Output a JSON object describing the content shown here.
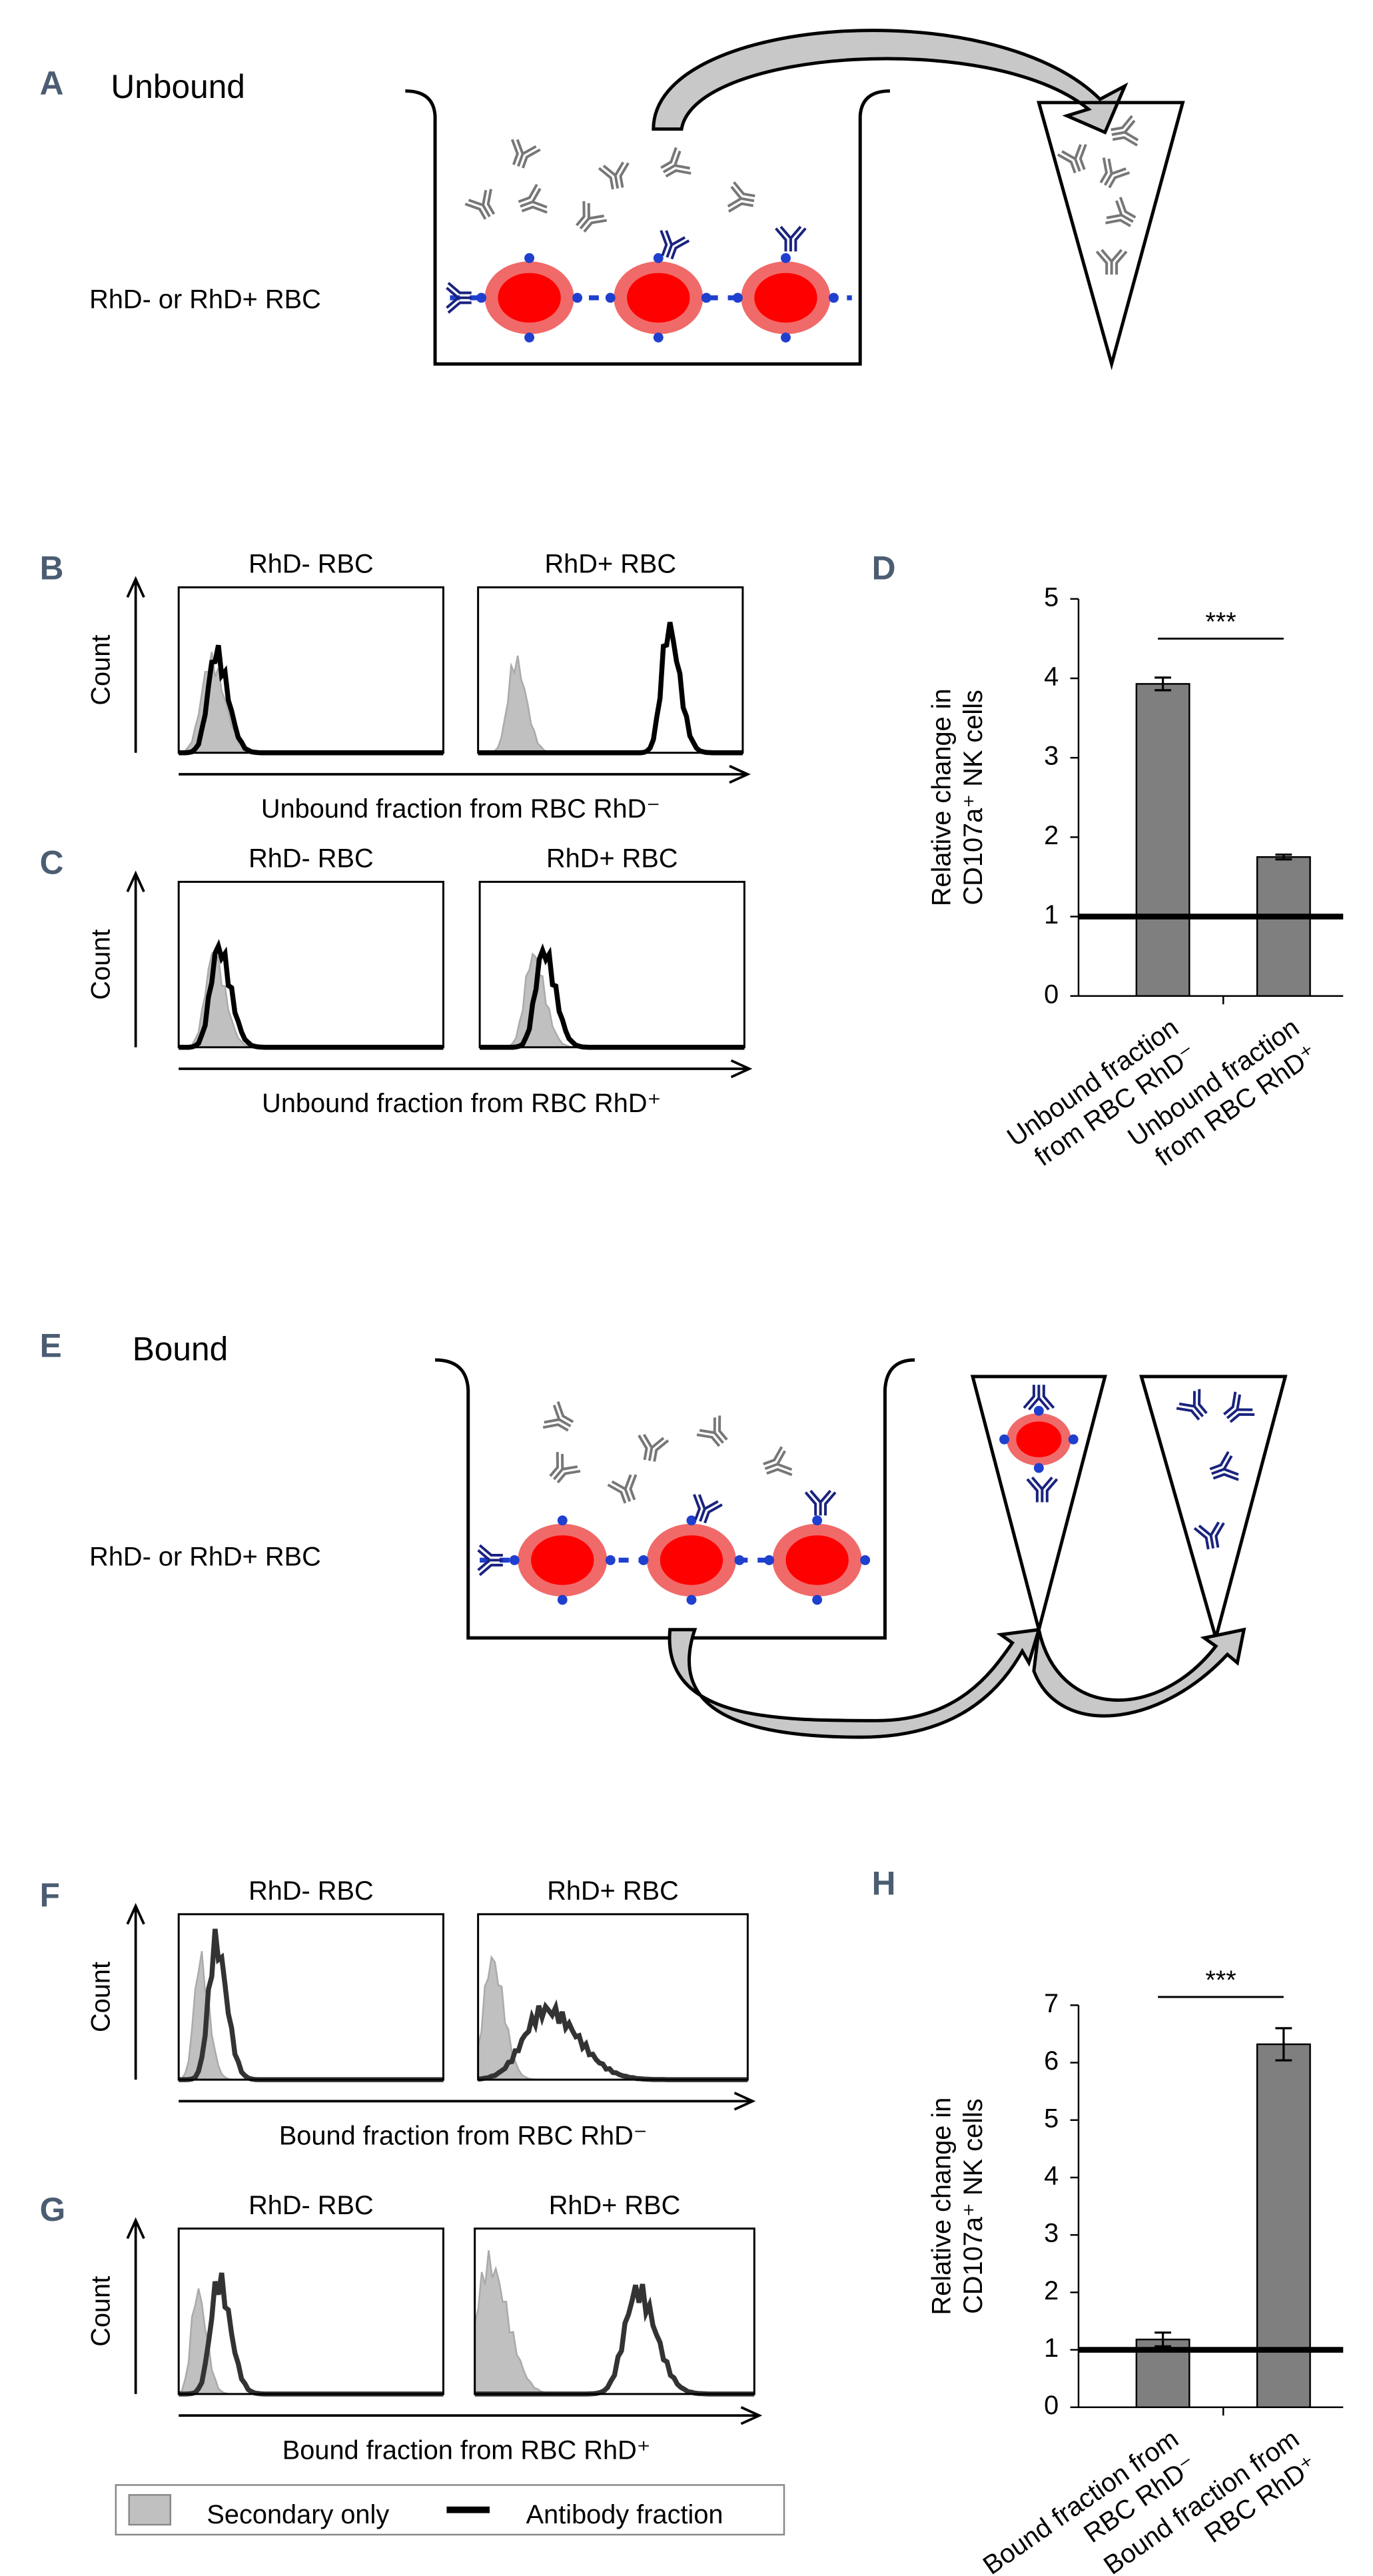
{
  "diagrams": [
    {
      "letter": "A",
      "title": "Unbound",
      "sample": "RhD- or RhD+ RBC"
    },
    {
      "letter": "E",
      "title": "Bound",
      "sample": "RhD- or RhD+ RBC"
    }
  ],
  "histograms": [
    {
      "letter": "B",
      "titles": [
        "RhD- RBC",
        "RhD+ RBC"
      ],
      "ylabel": "Count",
      "xlabel": "Unbound fraction from RBC RhD⁻"
    },
    {
      "letter": "C",
      "titles": [
        "RhD- RBC",
        "RhD+ RBC"
      ],
      "ylabel": "Count",
      "xlabel": "Unbound fraction from RBC RhD⁺"
    },
    {
      "letter": "F",
      "titles": [
        "RhD- RBC",
        "RhD+ RBC"
      ],
      "ylabel": "Count",
      "xlabel": "Bound fraction from RBC RhD⁻"
    },
    {
      "letter": "G",
      "titles": [
        "RhD- RBC",
        "RhD+ RBC"
      ],
      "ylabel": "Count",
      "xlabel": "Bound fraction from RBC RhD⁺"
    }
  ],
  "legend": [
    "Secondary only",
    "Antibody fraction"
  ],
  "chart_data": [
    {
      "type": "bar",
      "panel": "D",
      "ylabel": "Relative change in CD107a⁺ NK cells",
      "categories": [
        "Unbound fraction from RBC RhD⁻",
        "Unbound fraction from RBC RhD⁺"
      ],
      "values": [
        3.93,
        1.75
      ],
      "errors": [
        0.08,
        0.03
      ],
      "color": "#7f7f7f",
      "ylim": [
        0,
        5
      ],
      "yticks": [
        0,
        1,
        2,
        3,
        4,
        5
      ],
      "reference_line": 1,
      "significance": "***"
    },
    {
      "type": "bar",
      "panel": "H",
      "ylabel": "Relative change in CD107a⁺ NK cells",
      "categories": [
        "Bound fraction from RBC RhD⁻",
        "Bound fraction from RBC RhD⁺"
      ],
      "values": [
        1.18,
        6.32
      ],
      "errors": [
        0.12,
        0.28
      ],
      "color": "#7f7f7f",
      "ylim": [
        0,
        7
      ],
      "yticks": [
        0,
        1,
        2,
        3,
        4,
        5,
        6,
        7
      ],
      "reference_line": 1,
      "significance": "***"
    }
  ]
}
